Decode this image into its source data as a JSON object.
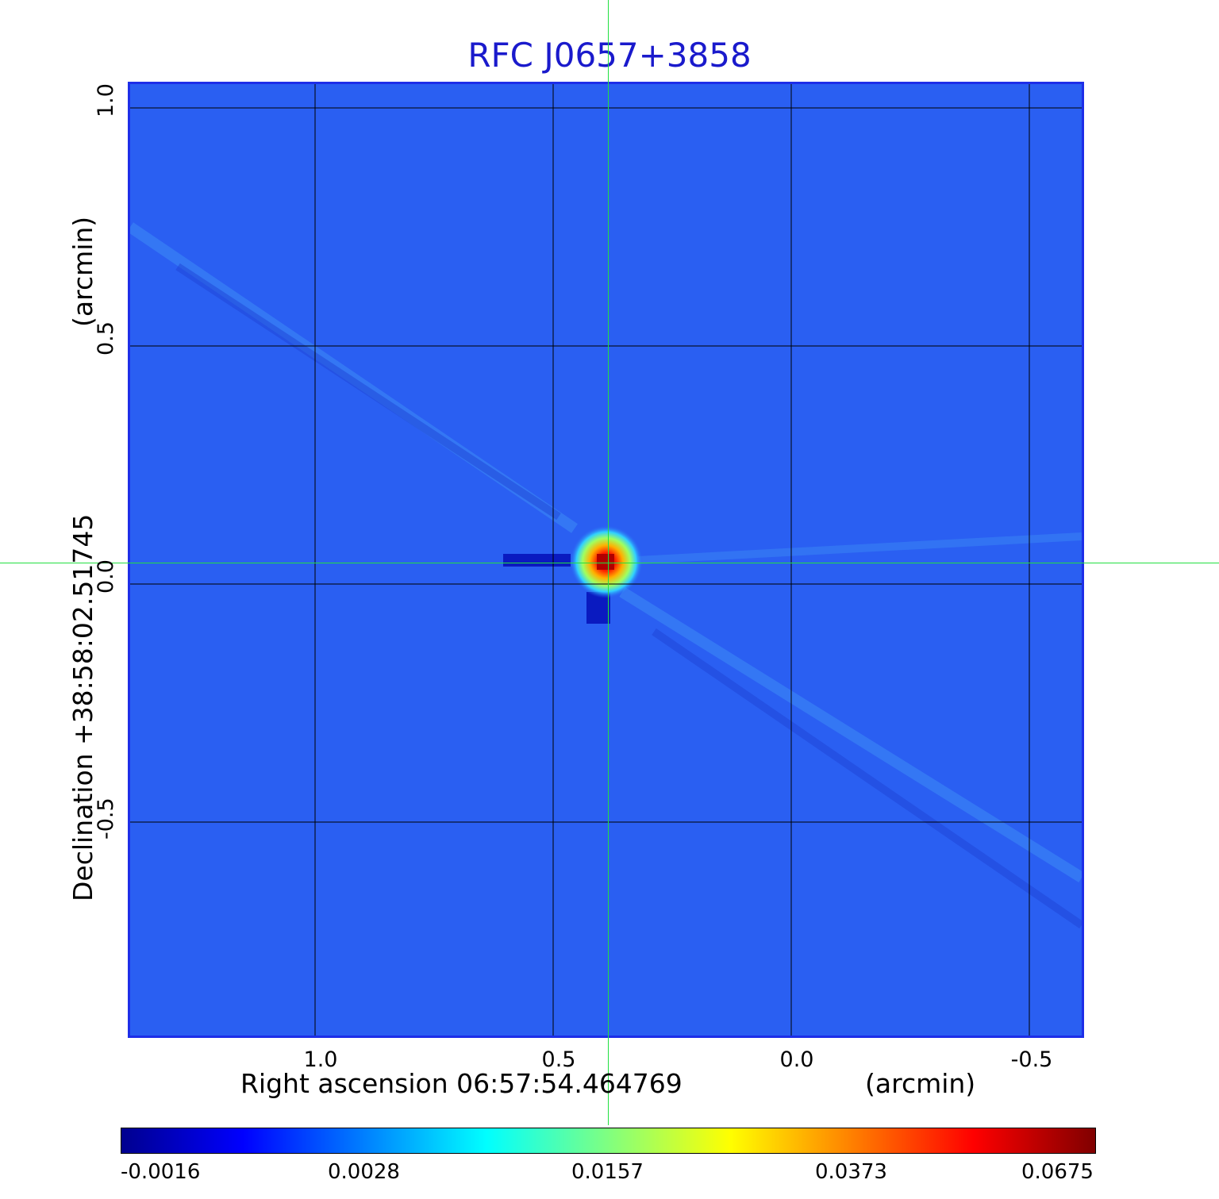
{
  "title": "RFC J0657+3858",
  "axes": {
    "y_ticks": [
      "1.0",
      "0.5",
      "0.0",
      "-0.5"
    ],
    "x_ticks": [
      "1.0",
      "0.5",
      "0.0",
      "-0.5"
    ],
    "y_label": "Declination  +38:58:02.51745",
    "y_unit": "(arcmin)",
    "x_label": "Right ascension  06:57:54.464769",
    "x_unit": "(arcmin)"
  },
  "colorbar": {
    "ticks": [
      "-0.0016",
      "0.0028",
      "0.0157",
      "0.0373",
      "0.0675"
    ],
    "colors": [
      "#00008f",
      "#0000ff",
      "#0080ff",
      "#00ffff",
      "#80ff80",
      "#ffff00",
      "#ff8000",
      "#ff0000",
      "#800000"
    ]
  },
  "colors": {
    "background_map": "#2a5ff2",
    "grid": "#000000",
    "crosshair": "#22e040",
    "title": "#1a1acc"
  }
}
